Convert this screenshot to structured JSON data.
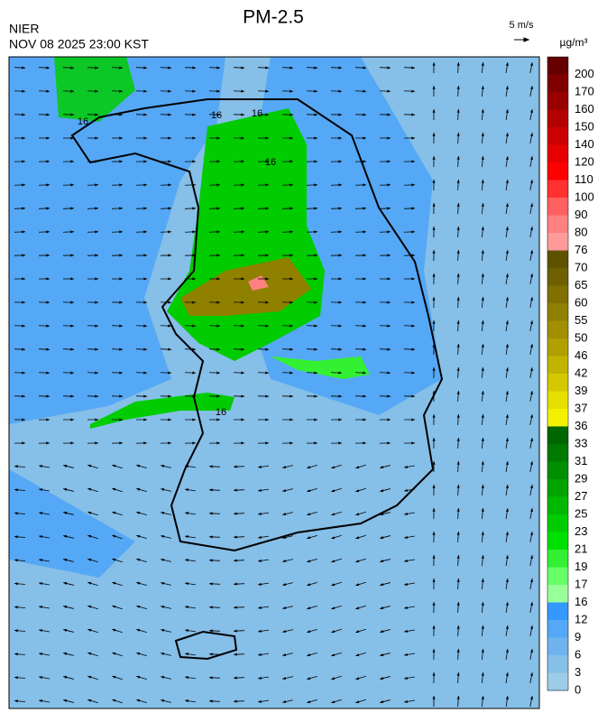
{
  "header": {
    "title": "PM-2.5",
    "source": "NIER",
    "datetime": "NOV 08 2025 23:00 KST",
    "wind_scale": "5 m/s"
  },
  "colorbar": {
    "unit": "µg/m³",
    "ticks": [
      200,
      170,
      160,
      150,
      140,
      120,
      110,
      100,
      90,
      80,
      76,
      70,
      65,
      60,
      55,
      50,
      46,
      42,
      39,
      37,
      36,
      33,
      31,
      29,
      27,
      25,
      23,
      21,
      19,
      17,
      16,
      12,
      9,
      6,
      3,
      0
    ],
    "colors": [
      "#660000",
      "#800000",
      "#990000",
      "#b30000",
      "#cc0000",
      "#e60000",
      "#ff0000",
      "#ff3030",
      "#ff6060",
      "#ff8080",
      "#ff9a9a",
      "#5e5200",
      "#6e6000",
      "#7f7000",
      "#8f8000",
      "#a09000",
      "#b0a000",
      "#c0b400",
      "#d4c800",
      "#e6e000",
      "#f2f200",
      "#006600",
      "#007a00",
      "#008f00",
      "#00a300",
      "#00b800",
      "#00cc00",
      "#00e000",
      "#33f033",
      "#66ff66",
      "#99ff99",
      "#3399ff",
      "#55a8f5",
      "#6fb3ee",
      "#86bfe8",
      "#9ccce6"
    ]
  },
  "map": {
    "contour_labels": [
      16,
      16,
      16,
      16,
      16
    ]
  }
}
